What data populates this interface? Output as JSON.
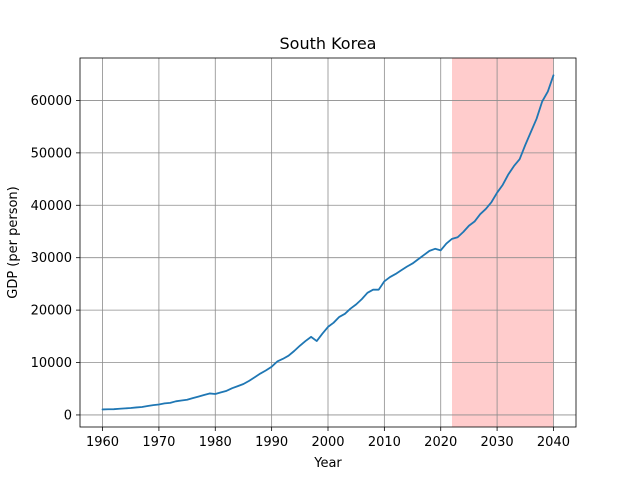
{
  "chart_data": {
    "type": "line",
    "title": "South Korea",
    "xlabel": "Year",
    "ylabel": "GDP (per person)",
    "xlim": [
      1956.0,
      2044.0
    ],
    "ylim": [
      -2300,
      68100
    ],
    "xticks": [
      1960,
      1970,
      1980,
      1990,
      2000,
      2010,
      2020,
      2030,
      2040
    ],
    "yticks": [
      0,
      10000,
      20000,
      30000,
      40000,
      50000,
      60000
    ],
    "grid": true,
    "highlight_range": {
      "x0": 2022,
      "x1": 2040,
      "color": "#ffcccc"
    },
    "series": [
      {
        "color": "#1f77b4",
        "x": [
          1960,
          1961,
          1962,
          1963,
          1964,
          1965,
          1966,
          1967,
          1968,
          1969,
          1970,
          1971,
          1972,
          1973,
          1974,
          1975,
          1976,
          1977,
          1978,
          1979,
          1980,
          1981,
          1982,
          1983,
          1984,
          1985,
          1986,
          1987,
          1988,
          1989,
          1990,
          1991,
          1992,
          1993,
          1994,
          1995,
          1996,
          1997,
          1998,
          1999,
          2000,
          2001,
          2002,
          2003,
          2004,
          2005,
          2006,
          2007,
          2008,
          2009,
          2010,
          2011,
          2012,
          2013,
          2014,
          2015,
          2016,
          2017,
          2018,
          2019,
          2020,
          2021,
          2022,
          2023,
          2024,
          2025,
          2026,
          2027,
          2028,
          2029,
          2030,
          2031,
          2032,
          2033,
          2034,
          2035,
          2036,
          2037,
          2038,
          2039,
          2040
        ],
        "y": [
          1050,
          1080,
          1100,
          1180,
          1250,
          1320,
          1430,
          1520,
          1700,
          1880,
          2000,
          2200,
          2300,
          2600,
          2750,
          2900,
          3200,
          3500,
          3800,
          4100,
          4000,
          4300,
          4600,
          5100,
          5500,
          5900,
          6500,
          7200,
          7900,
          8500,
          9200,
          10200,
          10700,
          11300,
          12200,
          13200,
          14100,
          14900,
          14100,
          15500,
          16800,
          17600,
          18700,
          19300,
          20300,
          21100,
          22100,
          23300,
          23900,
          23900,
          25500,
          26300,
          26900,
          27600,
          28300,
          28900,
          29700,
          30500,
          31300,
          31700,
          31400,
          32700,
          33600,
          33900,
          34900,
          36100,
          36900,
          38300,
          39300,
          40600,
          42400,
          43900,
          45900,
          47500,
          48800,
          51500,
          54000,
          56500,
          59800,
          61700,
          64800
        ]
      }
    ]
  }
}
